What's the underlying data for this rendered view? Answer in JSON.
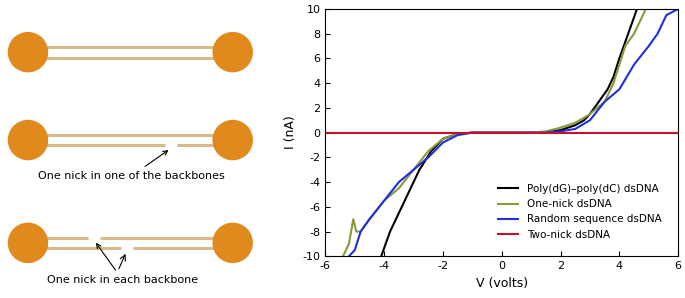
{
  "diagram": {
    "annotations": [
      "One nick in one of the backbones",
      "One nick in each backbone"
    ]
  },
  "chart_data": {
    "type": "line",
    "x_label": "V (volts)",
    "y_label": "I (nA)",
    "xlim": [
      -6,
      6
    ],
    "xticks": [
      -6,
      -4,
      -2,
      0,
      2,
      4,
      6
    ],
    "ylim": [
      -10,
      10
    ],
    "yticks": [
      -10,
      -8,
      -6,
      -4,
      -2,
      0,
      2,
      4,
      6,
      8,
      10
    ],
    "legend": "lower right",
    "grid": false,
    "series": [
      {
        "name": "Poly(dG)–poly(dC) dsDNA",
        "color": "#000000",
        "x": [
          -4.1,
          -3.8,
          -3.5,
          -3.2,
          -2.8,
          -2.4,
          -2.0,
          -1.5,
          -1.0,
          0,
          1.0,
          1.5,
          2.0,
          2.5,
          2.8,
          3.0,
          3.3,
          3.6,
          3.8,
          4.0,
          4.3,
          4.6
        ],
        "values": [
          -10,
          -8,
          -6.5,
          -5,
          -3,
          -1.5,
          -0.5,
          -0.1,
          0,
          0,
          0,
          0.05,
          0.2,
          0.6,
          1,
          1.5,
          2.5,
          3.5,
          4.5,
          6,
          8,
          10
        ]
      },
      {
        "name": "One-nick dsDNA",
        "color": "#8a9a3a",
        "x": [
          -5.4,
          -5.2,
          -5.05,
          -4.95,
          -4.8,
          -4.5,
          -4.0,
          -3.5,
          -3.0,
          -2.5,
          -2.0,
          -1.5,
          -1.0,
          1.0,
          1.5,
          2.0,
          2.5,
          2.8,
          3.0,
          3.5,
          3.8,
          4.0,
          4.2,
          4.5,
          4.7,
          4.9
        ],
        "values": [
          -10,
          -9,
          -7,
          -8,
          -8,
          -7,
          -5.5,
          -4.5,
          -3,
          -1.5,
          -0.5,
          -0.1,
          0,
          0,
          0.1,
          0.4,
          0.8,
          1.2,
          1.5,
          2.5,
          4,
          5.5,
          7,
          8,
          9,
          10
        ]
      },
      {
        "name": "Random sequence dsDNA",
        "color": "#1f2fe0",
        "x": [
          -5.2,
          -5.0,
          -4.8,
          -4.5,
          -4.0,
          -3.5,
          -3.0,
          -2.5,
          -2.0,
          -1.5,
          -1.0,
          1.0,
          1.5,
          2.0,
          2.5,
          3.0,
          3.5,
          4.0,
          4.5,
          5.0,
          5.3,
          5.6,
          6.0
        ],
        "values": [
          -10,
          -9.5,
          -8,
          -7,
          -5.5,
          -4,
          -3,
          -2,
          -0.8,
          -0.2,
          0,
          0,
          0,
          0.1,
          0.3,
          1,
          2.5,
          3.5,
          5.5,
          7,
          8,
          9.5,
          10
        ]
      },
      {
        "name": "Two-nick dsDNA",
        "color": "#c8102e",
        "x": [
          -6,
          6
        ],
        "values": [
          0,
          0
        ]
      }
    ]
  }
}
